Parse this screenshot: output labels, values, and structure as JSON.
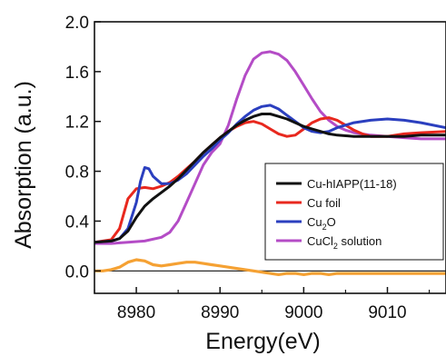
{
  "chart_data": {
    "type": "line",
    "title": "",
    "xlabel": "Energy(eV)",
    "ylabel": "Absorption (a.u.)",
    "xlim": [
      8975,
      9017
    ],
    "ylim": [
      -0.18,
      2.0
    ],
    "xticks": [
      8980,
      8990,
      9000,
      9010
    ],
    "yticks": [
      0.0,
      0.4,
      0.8,
      1.2,
      1.6,
      2.0
    ],
    "xtick_labels": [
      "8980",
      "8990",
      "9000",
      "9010"
    ],
    "ytick_labels": [
      "0.0",
      "0.4",
      "0.8",
      "1.2",
      "1.6",
      "2.0"
    ],
    "grid": false,
    "legend_position": "bottom-right",
    "colors": {
      "Cu-hIAPP(11-18)": "#111111",
      "Cu foil": "#e8281e",
      "Cu2O": "#2b3fbf",
      "CuCl2 solution": "#b44cc6",
      "difference": "#f5a133"
    },
    "series": [
      {
        "name": "Cu-hIAPP(11-18)",
        "x": [
          8975,
          8977,
          8978,
          8979,
          8980,
          8981,
          8982,
          8983,
          8984,
          8985,
          8986,
          8987,
          8988,
          8989,
          8990,
          8991,
          8992,
          8993,
          8994,
          8995,
          8996,
          8997,
          8998,
          8999,
          9000,
          9001,
          9002,
          9003,
          9004,
          9006,
          9008,
          9010,
          9012,
          9014,
          9017
        ],
        "y": [
          0.23,
          0.24,
          0.26,
          0.32,
          0.43,
          0.52,
          0.58,
          0.63,
          0.68,
          0.74,
          0.81,
          0.88,
          0.95,
          1.01,
          1.07,
          1.12,
          1.17,
          1.21,
          1.24,
          1.26,
          1.26,
          1.24,
          1.22,
          1.19,
          1.16,
          1.14,
          1.12,
          1.1,
          1.09,
          1.08,
          1.08,
          1.08,
          1.08,
          1.09,
          1.09
        ]
      },
      {
        "name": "Cu foil",
        "x": [
          8975,
          8977,
          8978,
          8979,
          8980,
          8981,
          8982,
          8983,
          8984,
          8985,
          8986,
          8987,
          8988,
          8989,
          8990,
          8991,
          8992,
          8993,
          8994,
          8995,
          8996,
          8997,
          8998,
          8999,
          9000,
          9001,
          9002,
          9003,
          9004,
          9005,
          9006,
          9007,
          9008,
          9010,
          9012,
          9014,
          9017
        ],
        "y": [
          0.23,
          0.25,
          0.34,
          0.58,
          0.66,
          0.67,
          0.66,
          0.68,
          0.71,
          0.76,
          0.82,
          0.88,
          0.95,
          1.01,
          1.07,
          1.12,
          1.16,
          1.19,
          1.2,
          1.18,
          1.14,
          1.1,
          1.08,
          1.09,
          1.14,
          1.19,
          1.22,
          1.23,
          1.21,
          1.17,
          1.13,
          1.1,
          1.08,
          1.08,
          1.1,
          1.11,
          1.12
        ]
      },
      {
        "name": "Cu2O",
        "x": [
          8975,
          8977,
          8978,
          8979,
          8980,
          8980.5,
          8981,
          8981.5,
          8982,
          8983,
          8984,
          8985,
          8986,
          8987,
          8988,
          8989,
          8990,
          8991,
          8992,
          8993,
          8994,
          8995,
          8996,
          8997,
          8998,
          8999,
          9000,
          9001,
          9002,
          9003,
          9004,
          9006,
          9008,
          9010,
          9012,
          9014,
          9017
        ],
        "y": [
          0.23,
          0.24,
          0.26,
          0.34,
          0.55,
          0.72,
          0.83,
          0.82,
          0.76,
          0.7,
          0.7,
          0.73,
          0.78,
          0.85,
          0.92,
          0.98,
          1.05,
          1.11,
          1.18,
          1.24,
          1.29,
          1.32,
          1.33,
          1.3,
          1.25,
          1.2,
          1.15,
          1.12,
          1.11,
          1.12,
          1.15,
          1.19,
          1.21,
          1.22,
          1.21,
          1.19,
          1.15
        ]
      },
      {
        "name": "CuCl2 solution",
        "x": [
          8975,
          8977,
          8979,
          8981,
          8983,
          8984,
          8985,
          8986,
          8987,
          8988,
          8989,
          8990,
          8991,
          8992,
          8993,
          8994,
          8995,
          8996,
          8997,
          8998,
          8999,
          9000,
          9001,
          9002,
          9003,
          9004,
          9005,
          9006,
          9008,
          9010,
          9012,
          9014,
          9017
        ],
        "y": [
          0.22,
          0.22,
          0.23,
          0.24,
          0.27,
          0.31,
          0.4,
          0.55,
          0.7,
          0.85,
          0.95,
          1.02,
          1.17,
          1.38,
          1.57,
          1.7,
          1.75,
          1.76,
          1.74,
          1.69,
          1.6,
          1.49,
          1.38,
          1.28,
          1.21,
          1.16,
          1.13,
          1.11,
          1.09,
          1.08,
          1.07,
          1.06,
          1.06
        ]
      },
      {
        "x": [
          8975,
          8976,
          8977,
          8978,
          8979,
          8980,
          8981,
          8982,
          8983,
          8984,
          8985,
          8986,
          8987,
          8988,
          8989,
          8990,
          8991,
          8992,
          8993,
          8994,
          8995,
          8996,
          8997,
          8998,
          8999,
          9000,
          9001,
          9002,
          9003,
          9004,
          9006,
          9008,
          9010,
          9012,
          9014,
          9017
        ],
        "y": [
          0.0,
          0.0,
          0.01,
          0.03,
          0.07,
          0.09,
          0.08,
          0.05,
          0.04,
          0.05,
          0.06,
          0.07,
          0.07,
          0.06,
          0.05,
          0.04,
          0.03,
          0.02,
          0.01,
          0.0,
          -0.01,
          -0.02,
          -0.03,
          -0.02,
          -0.02,
          -0.03,
          -0.02,
          -0.02,
          -0.03,
          -0.02,
          -0.02,
          -0.02,
          -0.02,
          -0.02,
          -0.02,
          -0.02
        ]
      }
    ],
    "legend": [
      {
        "label": "Cu-hIAPP(11-18)",
        "color": "#111111"
      },
      {
        "label": "Cu foil",
        "color": "#e8281e"
      },
      {
        "label_main": "Cu",
        "label_sub": "2",
        "label_rest": "O",
        "color": "#2b3fbf"
      },
      {
        "label_main": "CuCl",
        "label_sub": "2",
        "label_rest": " solution",
        "color": "#b44cc6"
      }
    ]
  }
}
